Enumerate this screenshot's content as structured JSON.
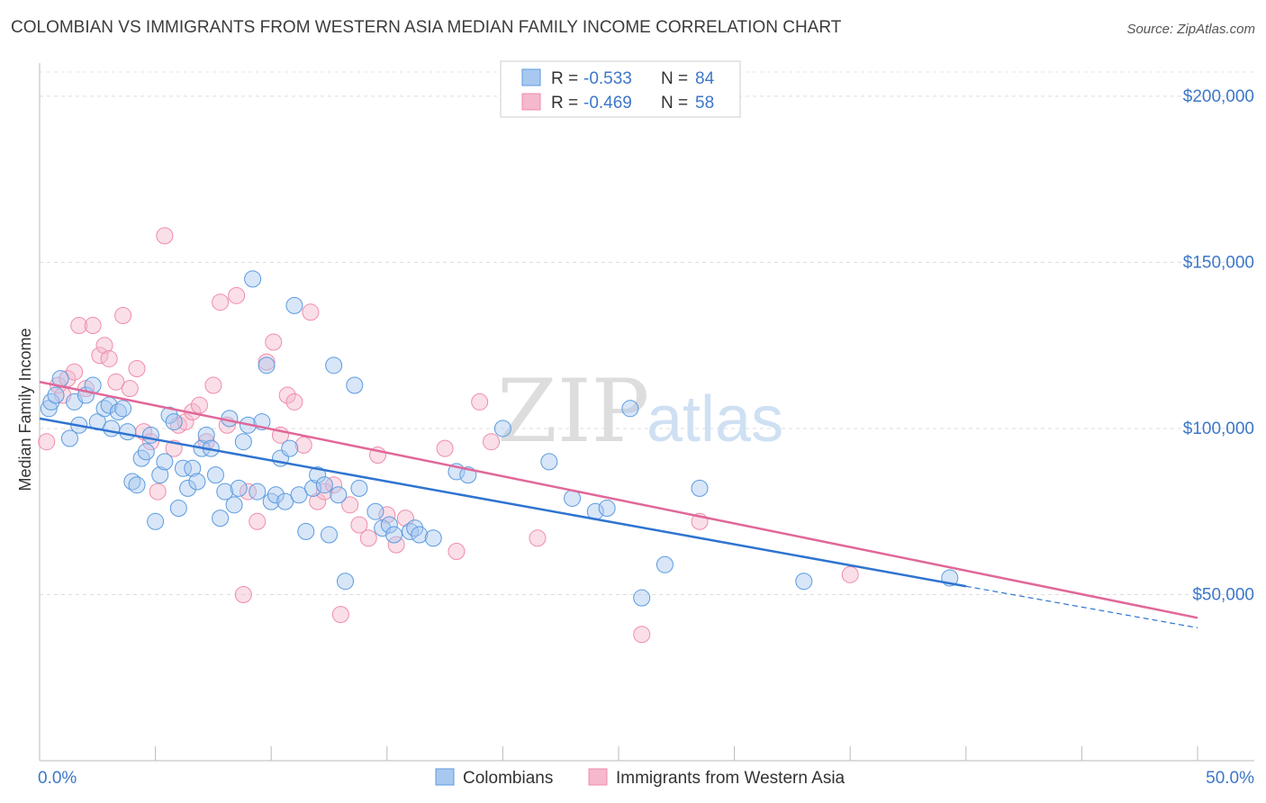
{
  "title": "COLOMBIAN VS IMMIGRANTS FROM WESTERN ASIA MEDIAN FAMILY INCOME CORRELATION CHART",
  "source": "Source: ZipAtlas.com",
  "watermark": {
    "zip": "ZIP",
    "atlas": "atlas"
  },
  "legend": {
    "rows": [
      {
        "r_label": "R = ",
        "r_value": "-0.533",
        "n_label": "N = ",
        "n_value": "84",
        "color": "#a8c8f0"
      },
      {
        "r_label": "R = ",
        "r_value": "-0.469",
        "n_label": "N = ",
        "n_value": "58",
        "color": "#f5b8cc"
      }
    ]
  },
  "colors": {
    "blue": "#5b9be0",
    "blue_line": "#2f74d0",
    "pink": "#f08caa",
    "pink_line": "#e0689a",
    "axis_label": "#3d77c9"
  },
  "chart_data": {
    "type": "scatter",
    "xlabel": "",
    "ylabel": "Median Family Income",
    "xlim": [
      0,
      50
    ],
    "ylim": [
      0,
      210000
    ],
    "x_tick_labels": [
      "0.0%",
      "50.0%"
    ],
    "y_ticks": [
      50000,
      100000,
      150000,
      200000
    ],
    "y_tick_labels": [
      "$50,000",
      "$100,000",
      "$150,000",
      "$200,000"
    ],
    "grid": true,
    "legend_position": "top-center",
    "series": [
      {
        "name": "Colombians",
        "color": "#5b9be0",
        "trend": {
          "x0": 0,
          "y0": 103000,
          "x1": 40,
          "y1": 52500,
          "dashed_to_x": 50,
          "dashed_to_y": 40000
        },
        "points": [
          [
            0.4,
            106000
          ],
          [
            0.5,
            108000
          ],
          [
            0.7,
            110000
          ],
          [
            0.9,
            115000
          ],
          [
            1.3,
            97000
          ],
          [
            1.5,
            108000
          ],
          [
            1.7,
            101000
          ],
          [
            2.0,
            110000
          ],
          [
            2.3,
            113000
          ],
          [
            2.5,
            102000
          ],
          [
            2.8,
            106000
          ],
          [
            3.0,
            107000
          ],
          [
            3.1,
            100000
          ],
          [
            3.4,
            105000
          ],
          [
            3.6,
            106000
          ],
          [
            3.8,
            99000
          ],
          [
            4.0,
            84000
          ],
          [
            4.2,
            83000
          ],
          [
            4.4,
            91000
          ],
          [
            4.6,
            93000
          ],
          [
            4.8,
            98000
          ],
          [
            5.0,
            72000
          ],
          [
            5.2,
            86000
          ],
          [
            5.4,
            90000
          ],
          [
            5.6,
            104000
          ],
          [
            5.8,
            102000
          ],
          [
            6.0,
            76000
          ],
          [
            6.2,
            88000
          ],
          [
            6.4,
            82000
          ],
          [
            6.6,
            88000
          ],
          [
            6.8,
            84000
          ],
          [
            7.0,
            94000
          ],
          [
            7.2,
            98000
          ],
          [
            7.4,
            94000
          ],
          [
            7.6,
            86000
          ],
          [
            7.8,
            73000
          ],
          [
            8.0,
            81000
          ],
          [
            8.2,
            103000
          ],
          [
            8.4,
            77000
          ],
          [
            8.6,
            82000
          ],
          [
            8.8,
            96000
          ],
          [
            9.0,
            101000
          ],
          [
            9.2,
            145000
          ],
          [
            9.4,
            81000
          ],
          [
            9.6,
            102000
          ],
          [
            9.8,
            119000
          ],
          [
            10.0,
            78000
          ],
          [
            10.2,
            80000
          ],
          [
            10.4,
            91000
          ],
          [
            10.6,
            78000
          ],
          [
            10.8,
            94000
          ],
          [
            11.0,
            137000
          ],
          [
            11.2,
            80000
          ],
          [
            11.5,
            69000
          ],
          [
            11.8,
            82000
          ],
          [
            12.0,
            86000
          ],
          [
            12.3,
            83000
          ],
          [
            12.5,
            68000
          ],
          [
            12.7,
            119000
          ],
          [
            12.9,
            80000
          ],
          [
            13.2,
            54000
          ],
          [
            13.6,
            113000
          ],
          [
            13.8,
            82000
          ],
          [
            14.5,
            75000
          ],
          [
            14.8,
            70000
          ],
          [
            15.1,
            71000
          ],
          [
            15.3,
            68000
          ],
          [
            16.0,
            69000
          ],
          [
            16.2,
            70000
          ],
          [
            16.4,
            68000
          ],
          [
            17.0,
            67000
          ],
          [
            18.0,
            87000
          ],
          [
            18.5,
            86000
          ],
          [
            23.0,
            79000
          ],
          [
            24.0,
            75000
          ],
          [
            24.5,
            76000
          ],
          [
            26.0,
            49000
          ],
          [
            25.5,
            106000
          ],
          [
            27.0,
            59000
          ],
          [
            28.5,
            82000
          ],
          [
            33.0,
            54000
          ],
          [
            39.3,
            55000
          ],
          [
            20.0,
            100000
          ],
          [
            22.0,
            90000
          ]
        ]
      },
      {
        "name": "Immigrants from Western Asia",
        "color": "#f08caa",
        "trend": {
          "x0": 0,
          "y0": 114000,
          "x1": 50,
          "y1": 43000
        },
        "points": [
          [
            0.3,
            96000
          ],
          [
            0.8,
            113000
          ],
          [
            1.0,
            110000
          ],
          [
            1.2,
            115000
          ],
          [
            1.5,
            117000
          ],
          [
            1.7,
            131000
          ],
          [
            2.0,
            112000
          ],
          [
            2.3,
            131000
          ],
          [
            2.6,
            122000
          ],
          [
            2.8,
            125000
          ],
          [
            3.0,
            121000
          ],
          [
            3.3,
            114000
          ],
          [
            3.6,
            134000
          ],
          [
            3.9,
            112000
          ],
          [
            4.2,
            118000
          ],
          [
            4.5,
            99000
          ],
          [
            4.8,
            96000
          ],
          [
            5.1,
            81000
          ],
          [
            5.4,
            158000
          ],
          [
            5.8,
            94000
          ],
          [
            6.0,
            101000
          ],
          [
            6.3,
            102000
          ],
          [
            6.6,
            105000
          ],
          [
            6.9,
            107000
          ],
          [
            7.2,
            96000
          ],
          [
            7.5,
            113000
          ],
          [
            7.8,
            138000
          ],
          [
            8.1,
            101000
          ],
          [
            8.5,
            140000
          ],
          [
            8.8,
            50000
          ],
          [
            9.0,
            81000
          ],
          [
            9.4,
            72000
          ],
          [
            9.8,
            120000
          ],
          [
            10.1,
            126000
          ],
          [
            10.4,
            98000
          ],
          [
            10.7,
            110000
          ],
          [
            11.0,
            108000
          ],
          [
            11.4,
            95000
          ],
          [
            11.7,
            135000
          ],
          [
            12.0,
            78000
          ],
          [
            12.3,
            81000
          ],
          [
            12.7,
            83000
          ],
          [
            13.0,
            44000
          ],
          [
            13.4,
            77000
          ],
          [
            13.8,
            71000
          ],
          [
            14.2,
            67000
          ],
          [
            14.6,
            92000
          ],
          [
            15.0,
            74000
          ],
          [
            15.4,
            65000
          ],
          [
            15.8,
            73000
          ],
          [
            17.5,
            94000
          ],
          [
            18.0,
            63000
          ],
          [
            19.0,
            108000
          ],
          [
            19.5,
            96000
          ],
          [
            21.5,
            67000
          ],
          [
            26.0,
            38000
          ],
          [
            28.5,
            72000
          ],
          [
            35.0,
            56000
          ]
        ]
      }
    ]
  },
  "bottom_legend": [
    {
      "label": "Colombians",
      "color": "#a8c8f0"
    },
    {
      "label": "Immigrants from Western Asia",
      "color": "#f5b8cc"
    }
  ]
}
